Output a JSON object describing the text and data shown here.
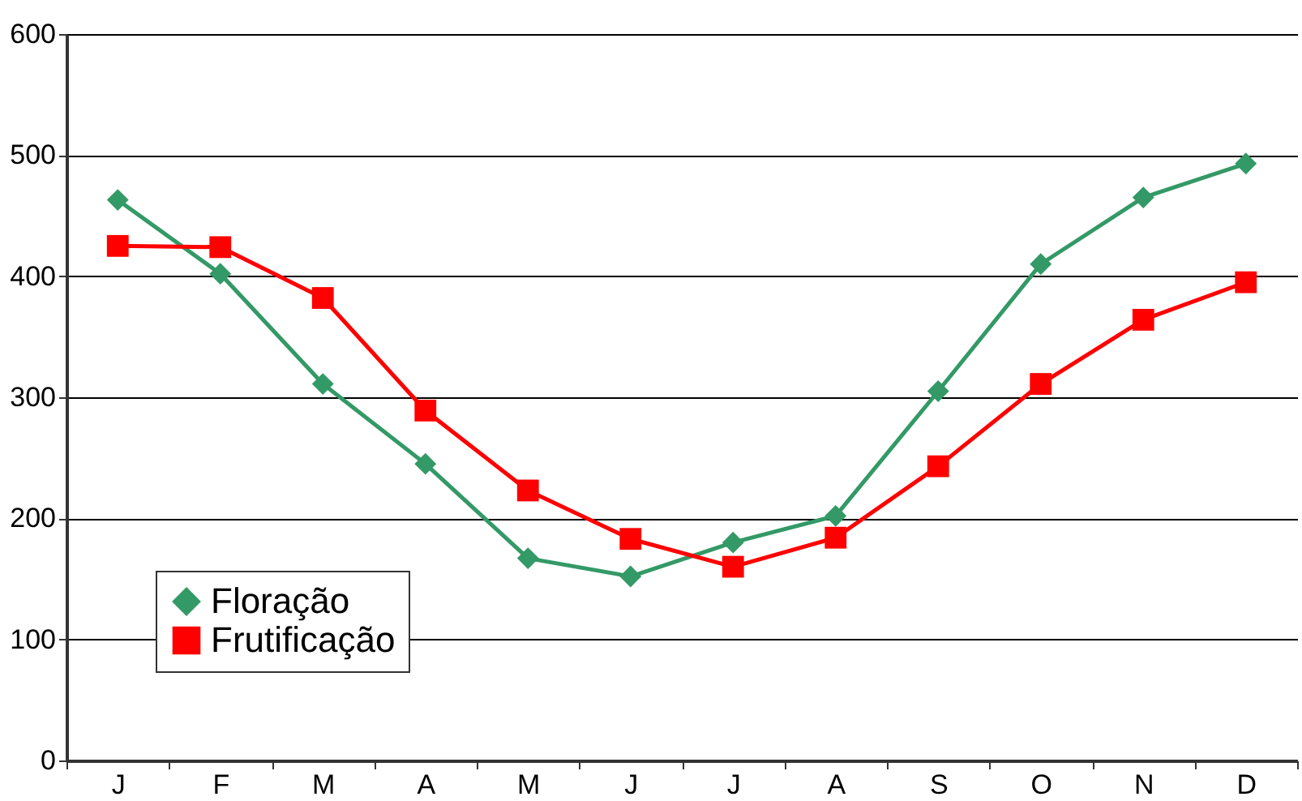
{
  "chart_data": {
    "type": "line",
    "categories": [
      "J",
      "F",
      "M",
      "A",
      "M",
      "J",
      "J",
      "A",
      "S",
      "O",
      "N",
      "D"
    ],
    "series": [
      {
        "name": "Floração",
        "color": "#339966",
        "marker": "diamond",
        "values": [
          463,
          402,
          311,
          245,
          167,
          152,
          180,
          202,
          305,
          410,
          465,
          493
        ]
      },
      {
        "name": "Frutificação",
        "color": "#ff0000",
        "marker": "square",
        "values": [
          425,
          424,
          382,
          289,
          223,
          183,
          160,
          184,
          243,
          311,
          364,
          395
        ]
      }
    ],
    "ylim": [
      0,
      600
    ],
    "yticks": [
      0,
      100,
      200,
      300,
      400,
      500,
      600
    ],
    "grid": "y",
    "legend": "bottom left",
    "line_style": "solid"
  }
}
